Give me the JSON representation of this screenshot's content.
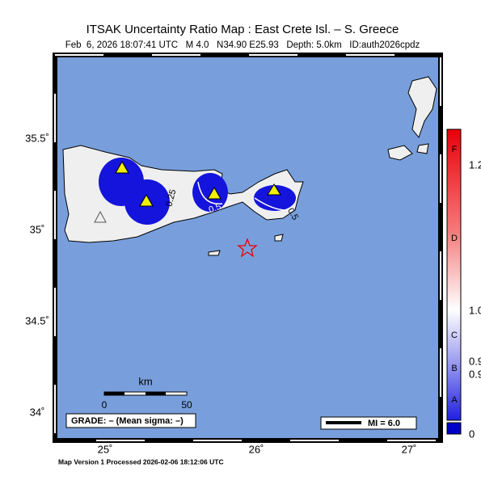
{
  "header": {
    "title": "ITSAK Uncertainty Ratio Map : East Crete Isl. – S. Greece",
    "subtitle": "Feb  6, 2026 18:07:41 UTC   M 4.0   N34.90 E25.93   Depth: 5.0km   ID:auth2026cpdz"
  },
  "map": {
    "lat_labels": [
      "35.5˚",
      "35˚",
      "34.5˚",
      "34˚"
    ],
    "lon_labels": [
      "25˚",
      "26˚",
      "27˚"
    ],
    "contour_labels": [
      "0.25",
      "0.5",
      "0.5"
    ]
  },
  "scale_bar": {
    "unit": "km",
    "labels": [
      "0",
      "50"
    ]
  },
  "grade": "GRADE: – (Mean sigma: –)",
  "legend": "MI = 6.0",
  "colorbar": {
    "grades": [
      "F",
      "D",
      "C",
      "B",
      "A"
    ],
    "labels": [
      "1.2",
      "1.0",
      "0.9",
      "0.9",
      "0"
    ]
  },
  "footer": "Map Version 1 Processed 2026-02-06 18:12:06 UTC"
}
